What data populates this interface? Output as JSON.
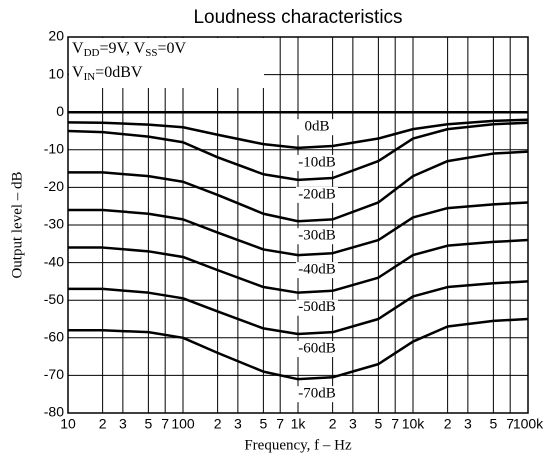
{
  "chart_data": {
    "type": "line",
    "title": "Loudness characteristics",
    "xlabel": "Frequency, f – Hz",
    "ylabel": "Output level – dB",
    "annotations": [
      [
        "V",
        "DD",
        "=9V, V",
        "SS",
        "=0V"
      ],
      [
        "V",
        "IN",
        "=0dBV"
      ]
    ],
    "xscale": "log",
    "xlim": [
      10,
      100000
    ],
    "ylim": [
      -80,
      20
    ],
    "xticks": [
      10,
      {
        "value": 20,
        "label": "2"
      },
      {
        "value": 30,
        "label": "3"
      },
      {
        "value": 50,
        "label": "5"
      },
      {
        "value": 70,
        "label": "7"
      },
      100,
      {
        "value": 200,
        "label": "2"
      },
      {
        "value": 300,
        "label": "3"
      },
      {
        "value": 500,
        "label": "5"
      },
      {
        "value": 700,
        "label": "7"
      },
      {
        "value": 1000,
        "label": "1k"
      },
      {
        "value": 2000,
        "label": "2"
      },
      {
        "value": 3000,
        "label": "3"
      },
      {
        "value": 5000,
        "label": "5"
      },
      {
        "value": 7000,
        "label": "7"
      },
      {
        "value": 10000,
        "label": "10k"
      },
      {
        "value": 20000,
        "label": "2"
      },
      {
        "value": 30000,
        "label": "3"
      },
      {
        "value": 50000,
        "label": "5"
      },
      {
        "value": 70000,
        "label": "7"
      },
      {
        "value": 100000,
        "label": "100k"
      }
    ],
    "yticks": [
      20,
      10,
      0,
      -10,
      -20,
      -30,
      -40,
      -50,
      -60,
      -70,
      -80
    ],
    "grid": true,
    "color": "#000000",
    "x": [
      10,
      20,
      50,
      100,
      200,
      500,
      1000,
      2000,
      5000,
      10000,
      20000,
      50000,
      100000
    ],
    "series": [
      {
        "name": "0dB",
        "values": [
          0,
          0,
          0,
          0,
          0,
          0,
          0,
          0,
          0,
          0,
          0,
          0,
          0
        ]
      },
      {
        "name": "-10dB",
        "values": [
          -2.7,
          -2.8,
          -3.3,
          -4,
          -6,
          -8.5,
          -9.5,
          -9,
          -7,
          -4.5,
          -3.2,
          -2.3,
          -2
        ]
      },
      {
        "name": "-20dB",
        "values": [
          -5,
          -5.3,
          -6.5,
          -8,
          -12,
          -16.5,
          -18,
          -17.5,
          -13,
          -7,
          -4.5,
          -3.2,
          -2.8
        ]
      },
      {
        "name": "-30dB",
        "values": [
          -16,
          -16,
          -17,
          -18.5,
          -22,
          -27,
          -29,
          -28.5,
          -24,
          -17,
          -13,
          -11,
          -10.5
        ]
      },
      {
        "name": "-40dB",
        "values": [
          -26,
          -26,
          -27,
          -28.5,
          -32,
          -36.5,
          -38,
          -37.5,
          -34,
          -28,
          -25.5,
          -24.5,
          -24
        ]
      },
      {
        "name": "-50dB",
        "values": [
          -36,
          -36,
          -37,
          -38.5,
          -42,
          -46.5,
          -48,
          -47.5,
          -44,
          -38,
          -35.5,
          -34.5,
          -34
        ]
      },
      {
        "name": "-60dB",
        "values": [
          -47,
          -47,
          -48,
          -49.5,
          -53,
          -57.5,
          -59,
          -58.5,
          -55,
          -49,
          -46.5,
          -45.5,
          -45
        ]
      },
      {
        "name": "-70dB",
        "values": [
          -58,
          -58,
          -58.5,
          -60,
          -64,
          -69,
          -71,
          -70.5,
          -67,
          -61,
          -57,
          -55.5,
          -55
        ]
      }
    ]
  }
}
